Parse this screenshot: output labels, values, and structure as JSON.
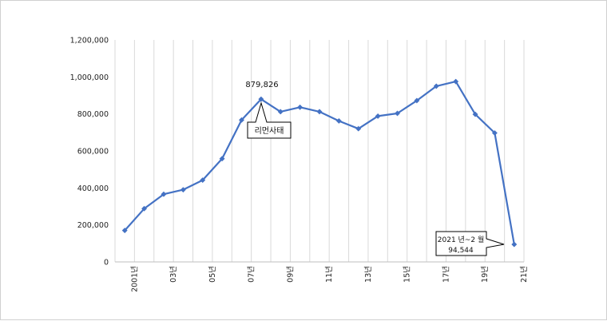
{
  "chart_data": {
    "type": "line",
    "x": [
      "2001",
      "2002",
      "2003",
      "2004",
      "2005",
      "2006",
      "2007",
      "2008",
      "2009",
      "2010",
      "2011",
      "2012",
      "2013",
      "2014",
      "2015",
      "2016",
      "2017",
      "2018",
      "2019",
      "2020",
      "2021"
    ],
    "series": [
      {
        "values": [
          170000,
          288000,
          366000,
          390000,
          442000,
          558000,
          767000,
          879826,
          812000,
          836000,
          812000,
          762000,
          720000,
          788000,
          803000,
          872000,
          950000,
          975000,
          798000,
          697000,
          94544
        ]
      }
    ],
    "ylim": [
      0,
      1200000
    ],
    "y_ticks": [
      "0",
      "200,000",
      "400,000",
      "600,000",
      "800,000",
      "1,000,000",
      "1,200,000"
    ],
    "x_tick_labels": [
      "2001년",
      "03년",
      "05년",
      "07년",
      "09년",
      "11년",
      "13년",
      "15년",
      "17년",
      "19년",
      "21년"
    ],
    "grid": "vertical",
    "line_color": "#4472C4",
    "annotations": {
      "peak_value": "879,826",
      "lehman_label": "리먼사태",
      "last_line1": "2021 년~2 월",
      "last_line2": "94,544"
    }
  }
}
